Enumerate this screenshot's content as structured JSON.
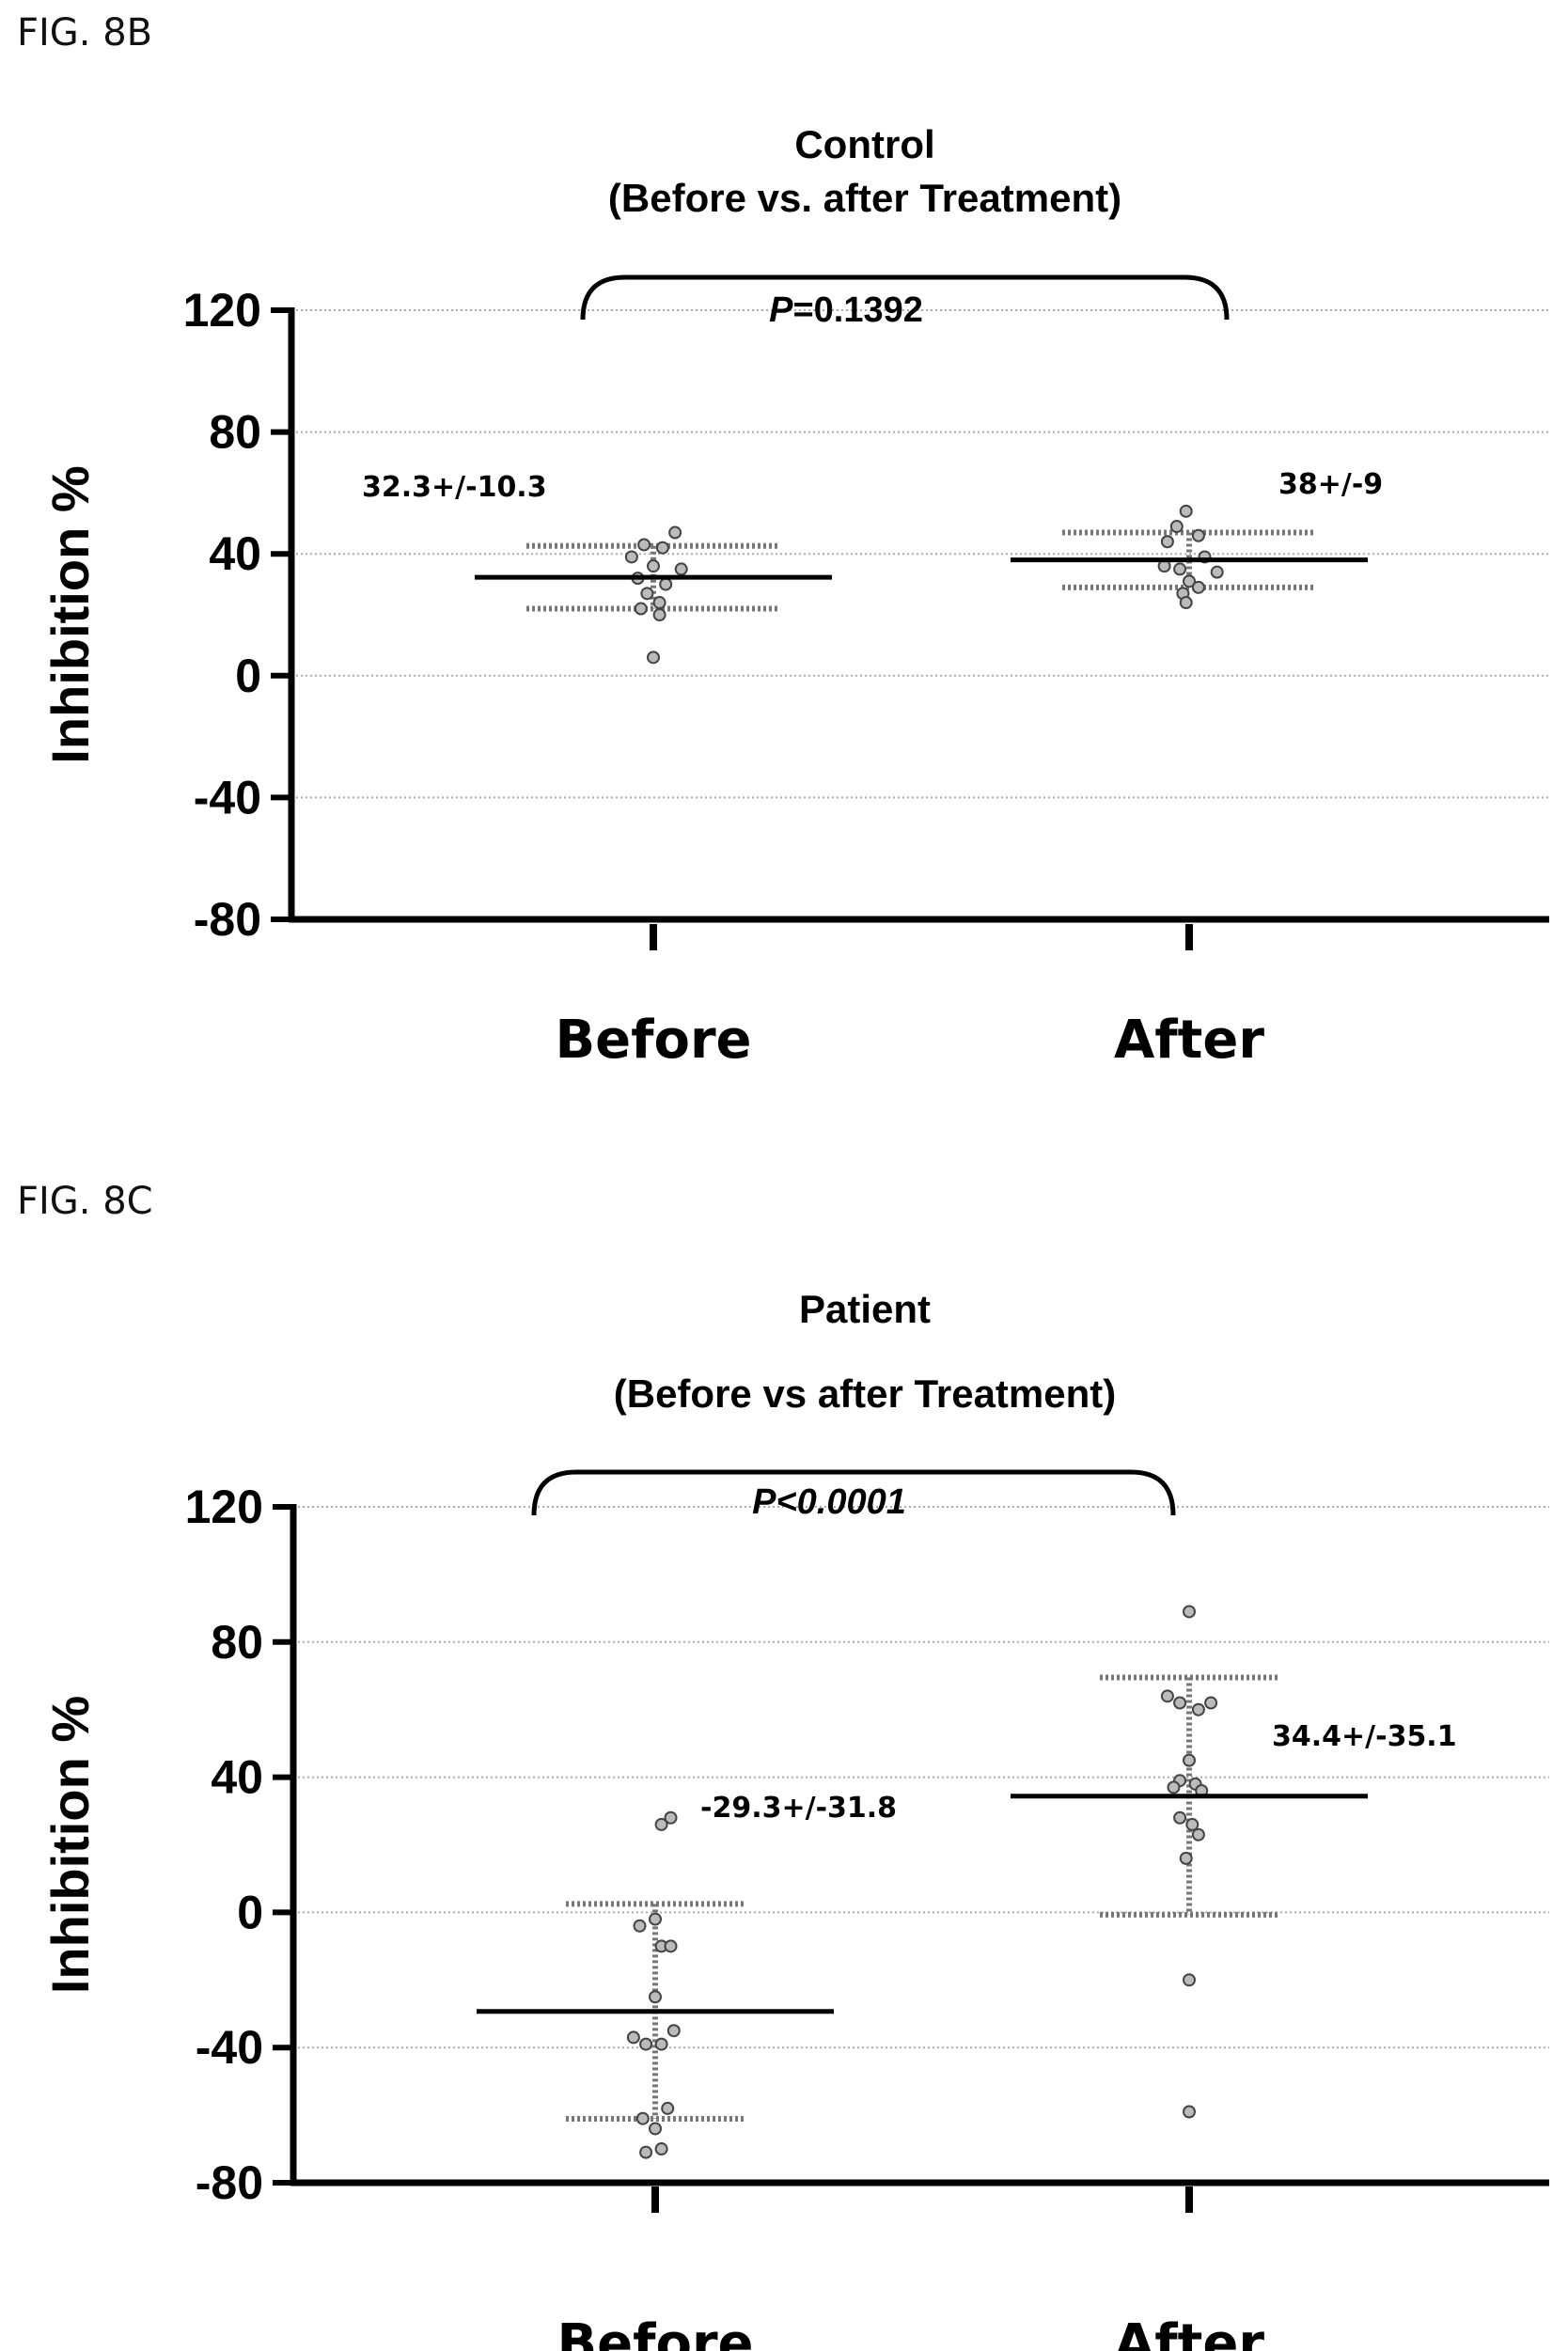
{
  "figures": [
    {
      "label": "FIG. 8B"
    },
    {
      "label": "FIG. 8C"
    }
  ],
  "chart_data": [
    {
      "type": "scatter",
      "title": "Control",
      "subtitle": "(Before vs. after Treatment)",
      "xlabel": "",
      "ylabel": "Inhibition %",
      "categories": [
        "Before",
        "After"
      ],
      "ylim": [
        -80,
        120
      ],
      "yticks": [
        "120",
        "80",
        "40",
        "0",
        "-40",
        "-80"
      ],
      "grid": true,
      "pvalue": {
        "italic": "P",
        "rest": "=0.1392"
      },
      "series": [
        {
          "category": "Before",
          "annotation": "32.3+/-10.3",
          "mean": 32.3,
          "error_low": 22,
          "error_high": 42.6,
          "points": [
            {
              "dx": -0.03,
              "y": 43
            },
            {
              "dx": 0.07,
              "y": 47
            },
            {
              "dx": -0.07,
              "y": 39
            },
            {
              "dx": 0.03,
              "y": 42
            },
            {
              "dx": -0.05,
              "y": 32
            },
            {
              "dx": 0.0,
              "y": 36
            },
            {
              "dx": 0.04,
              "y": 30
            },
            {
              "dx": 0.09,
              "y": 35
            },
            {
              "dx": -0.02,
              "y": 27
            },
            {
              "dx": 0.02,
              "y": 24
            },
            {
              "dx": -0.04,
              "y": 22
            },
            {
              "dx": 0.02,
              "y": 20
            },
            {
              "dx": 0.0,
              "y": 6
            }
          ]
        },
        {
          "category": "After",
          "annotation": "38+/-9",
          "mean": 38,
          "error_low": 29,
          "error_high": 47,
          "points": [
            {
              "dx": -0.01,
              "y": 54
            },
            {
              "dx": -0.04,
              "y": 49
            },
            {
              "dx": -0.07,
              "y": 44
            },
            {
              "dx": 0.03,
              "y": 46
            },
            {
              "dx": 0.05,
              "y": 39
            },
            {
              "dx": -0.08,
              "y": 36
            },
            {
              "dx": -0.03,
              "y": 35
            },
            {
              "dx": 0.09,
              "y": 34
            },
            {
              "dx": 0.0,
              "y": 31
            },
            {
              "dx": 0.03,
              "y": 29
            },
            {
              "dx": -0.02,
              "y": 27
            },
            {
              "dx": -0.01,
              "y": 24
            }
          ]
        }
      ]
    },
    {
      "type": "scatter",
      "title": "Patient",
      "subtitle": "(Before vs after Treatment)",
      "xlabel": "",
      "ylabel": "Inhibition %",
      "categories": [
        "Before",
        "After"
      ],
      "ylim": [
        -80,
        120
      ],
      "yticks": [
        "120",
        "80",
        "40",
        "0",
        "-40",
        "-80"
      ],
      "grid": true,
      "pvalue": {
        "italic": "P<0.0001",
        "rest": ""
      },
      "series": [
        {
          "category": "Before",
          "annotation": "-29.3+/-31.8",
          "mean": -29.3,
          "error_low": -61.1,
          "error_high": 2.5,
          "points": [
            {
              "dx": 0.05,
              "y": 28
            },
            {
              "dx": 0.02,
              "y": 26
            },
            {
              "dx": -0.05,
              "y": -4
            },
            {
              "dx": 0.0,
              "y": -2
            },
            {
              "dx": 0.02,
              "y": -10
            },
            {
              "dx": 0.05,
              "y": -10
            },
            {
              "dx": 0.0,
              "y": -25
            },
            {
              "dx": -0.07,
              "y": -37
            },
            {
              "dx": 0.06,
              "y": -35
            },
            {
              "dx": -0.03,
              "y": -39
            },
            {
              "dx": 0.02,
              "y": -39
            },
            {
              "dx": -0.04,
              "y": -61
            },
            {
              "dx": 0.04,
              "y": -58
            },
            {
              "dx": 0.0,
              "y": -64
            },
            {
              "dx": -0.03,
              "y": -71
            },
            {
              "dx": 0.02,
              "y": -70
            }
          ]
        },
        {
          "category": "After",
          "annotation": "34.4+/-35.1",
          "mean": 34.4,
          "error_low": -0.7,
          "error_high": 69.5,
          "points": [
            {
              "dx": 0.0,
              "y": 89
            },
            {
              "dx": -0.07,
              "y": 64
            },
            {
              "dx": -0.03,
              "y": 62
            },
            {
              "dx": 0.03,
              "y": 60
            },
            {
              "dx": 0.07,
              "y": 62
            },
            {
              "dx": 0.0,
              "y": 45
            },
            {
              "dx": -0.03,
              "y": 39
            },
            {
              "dx": -0.05,
              "y": 37
            },
            {
              "dx": 0.02,
              "y": 38
            },
            {
              "dx": 0.04,
              "y": 36
            },
            {
              "dx": -0.03,
              "y": 28
            },
            {
              "dx": 0.01,
              "y": 26
            },
            {
              "dx": 0.03,
              "y": 23
            },
            {
              "dx": -0.01,
              "y": 16
            },
            {
              "dx": 0.0,
              "y": -20
            },
            {
              "dx": 0.0,
              "y": -59
            }
          ]
        }
      ]
    }
  ]
}
